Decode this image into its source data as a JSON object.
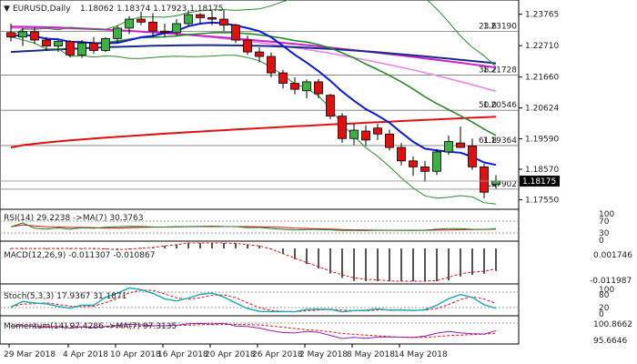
{
  "header": {
    "symbol": "EURUSD,Daily",
    "ohlc": "1.18062 1.18374 1.17923 1.18175"
  },
  "price_axis": {
    "ticks": [
      "1.23765",
      "1.22710",
      "1.21660",
      "1.20624",
      "1.19590",
      "1.18570",
      "1.17550"
    ],
    "current": "1.18175"
  },
  "fib_levels": [
    {
      "label": "23.6",
      "value": "1.23190"
    },
    {
      "label": "38.2",
      "value": "1.21728"
    },
    {
      "label": "50.0",
      "value": "1.20546"
    },
    {
      "label": "61.8",
      "value": "1.19364"
    },
    {
      "label": "76.4",
      "value": "1.17902"
    }
  ],
  "rsi": {
    "label": "RSI(14) 29.2238 ->MA(7) 30.3763",
    "ticks": [
      "100",
      "70",
      "30",
      "0"
    ]
  },
  "macd": {
    "label": "MACD(12,26,9) -0.011307 -0.010867",
    "ticks": [
      "0.001746",
      "-0.011987"
    ]
  },
  "stoch": {
    "label": "Stoch(5,3,3) 17.9367 31.1871",
    "ticks": [
      "100",
      "80",
      "20",
      "0"
    ]
  },
  "momentum": {
    "label": "Momentum(14) 97.4286 ->MA(7) 97.3135",
    "ticks": [
      "100.8662",
      "95.6646"
    ]
  },
  "date_axis": [
    "29 Mar 2018",
    "4 Apr 2018",
    "10 Apr 2018",
    "16 Apr 2018",
    "20 Apr 2018",
    "26 Apr 2018",
    "2 May 2018",
    "8 May 2018",
    "14 May 2018"
  ],
  "colors": {
    "bull": "#3cb043",
    "bear": "#e01010",
    "ma_blue": "#0a1ad8",
    "ma_navy": "#1a2a8a",
    "ma_green": "#2a8a2a",
    "ma_magenta": "#cc22cc",
    "ma_pink": "#e888e8",
    "ma_red": "#e01010"
  },
  "chart_data": {
    "type": "candlestick",
    "candles": [
      {
        "o": 1.2315,
        "h": 1.2345,
        "l": 1.2285,
        "c": 1.23
      },
      {
        "o": 1.23,
        "h": 1.233,
        "l": 1.227,
        "c": 1.2318
      },
      {
        "o": 1.2318,
        "h": 1.2332,
        "l": 1.2278,
        "c": 1.229
      },
      {
        "o": 1.229,
        "h": 1.23,
        "l": 1.2255,
        "c": 1.227
      },
      {
        "o": 1.227,
        "h": 1.229,
        "l": 1.225,
        "c": 1.2285
      },
      {
        "o": 1.2285,
        "h": 1.229,
        "l": 1.2232,
        "c": 1.224
      },
      {
        "o": 1.224,
        "h": 1.229,
        "l": 1.223,
        "c": 1.228
      },
      {
        "o": 1.228,
        "h": 1.23,
        "l": 1.2245,
        "c": 1.2255
      },
      {
        "o": 1.2255,
        "h": 1.23,
        "l": 1.225,
        "c": 1.2295
      },
      {
        "o": 1.2295,
        "h": 1.234,
        "l": 1.228,
        "c": 1.233
      },
      {
        "o": 1.233,
        "h": 1.237,
        "l": 1.231,
        "c": 1.236
      },
      {
        "o": 1.236,
        "h": 1.2385,
        "l": 1.234,
        "c": 1.235
      },
      {
        "o": 1.235,
        "h": 1.238,
        "l": 1.23,
        "c": 1.232
      },
      {
        "o": 1.232,
        "h": 1.2345,
        "l": 1.23,
        "c": 1.2315
      },
      {
        "o": 1.2315,
        "h": 1.236,
        "l": 1.2305,
        "c": 1.2345
      },
      {
        "o": 1.2345,
        "h": 1.239,
        "l": 1.2335,
        "c": 1.2375
      },
      {
        "o": 1.2375,
        "h": 1.238,
        "l": 1.2345,
        "c": 1.2365
      },
      {
        "o": 1.2365,
        "h": 1.2388,
        "l": 1.234,
        "c": 1.236
      },
      {
        "o": 1.236,
        "h": 1.239,
        "l": 1.232,
        "c": 1.234
      },
      {
        "o": 1.234,
        "h": 1.2345,
        "l": 1.228,
        "c": 1.229
      },
      {
        "o": 1.229,
        "h": 1.2305,
        "l": 1.224,
        "c": 1.225
      },
      {
        "o": 1.225,
        "h": 1.2265,
        "l": 1.2215,
        "c": 1.2235
      },
      {
        "o": 1.2235,
        "h": 1.2248,
        "l": 1.2165,
        "c": 1.218
      },
      {
        "o": 1.218,
        "h": 1.219,
        "l": 1.2128,
        "c": 1.2145
      },
      {
        "o": 1.2145,
        "h": 1.2165,
        "l": 1.2108,
        "c": 1.2125
      },
      {
        "o": 1.212,
        "h": 1.2158,
        "l": 1.2095,
        "c": 1.215
      },
      {
        "o": 1.215,
        "h": 1.216,
        "l": 1.2095,
        "c": 1.211
      },
      {
        "o": 1.2105,
        "h": 1.211,
        "l": 1.2025,
        "c": 1.2035
      },
      {
        "o": 1.2035,
        "h": 1.2045,
        "l": 1.1945,
        "c": 1.196
      },
      {
        "o": 1.196,
        "h": 1.201,
        "l": 1.1938,
        "c": 1.1988
      },
      {
        "o": 1.1985,
        "h": 1.2005,
        "l": 1.1935,
        "c": 1.1955
      },
      {
        "o": 1.1995,
        "h": 1.201,
        "l": 1.1955,
        "c": 1.1975
      },
      {
        "o": 1.1975,
        "h": 1.199,
        "l": 1.192,
        "c": 1.193
      },
      {
        "o": 1.193,
        "h": 1.1945,
        "l": 1.187,
        "c": 1.1885
      },
      {
        "o": 1.1885,
        "h": 1.19,
        "l": 1.1835,
        "c": 1.1865
      },
      {
        "o": 1.1865,
        "h": 1.1885,
        "l": 1.1815,
        "c": 1.185
      },
      {
        "o": 1.185,
        "h": 1.1925,
        "l": 1.1838,
        "c": 1.1915
      },
      {
        "o": 1.1915,
        "h": 1.197,
        "l": 1.1905,
        "c": 1.195
      },
      {
        "o": 1.1945,
        "h": 1.2,
        "l": 1.193,
        "c": 1.193
      },
      {
        "o": 1.1935,
        "h": 1.196,
        "l": 1.1855,
        "c": 1.1865
      },
      {
        "o": 1.1865,
        "h": 1.1875,
        "l": 1.176,
        "c": 1.178
      },
      {
        "o": 1.1806,
        "h": 1.1837,
        "l": 1.1792,
        "c": 1.1818
      }
    ],
    "price_range": [
      1.1735,
      1.2412
    ]
  }
}
